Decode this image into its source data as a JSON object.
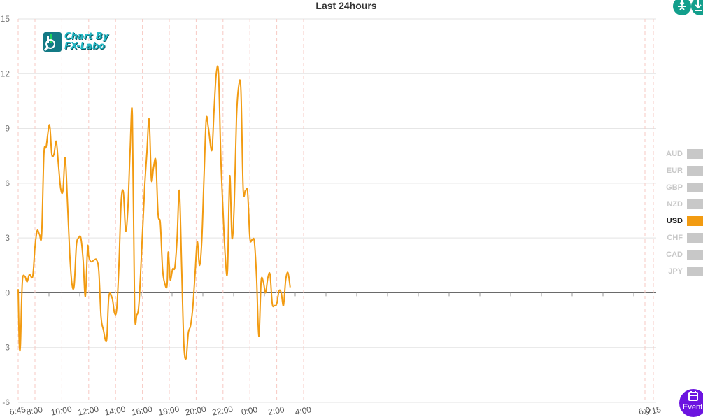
{
  "window": {
    "title": "Last 24hours"
  },
  "logo": {
    "line1": "Chart By",
    "line2": "FX-Labo"
  },
  "legend": [
    {
      "label": "AUD",
      "active": false
    },
    {
      "label": "EUR",
      "active": false
    },
    {
      "label": "GBP",
      "active": false
    },
    {
      "label": "NZD",
      "active": false
    },
    {
      "label": "USD",
      "active": true
    },
    {
      "label": "CHF",
      "active": false
    },
    {
      "label": "CAD",
      "active": false
    },
    {
      "label": "JPY",
      "active": false
    }
  ],
  "buttons": {
    "event_label": "Event"
  },
  "colors": {
    "series": "#f29b11",
    "active_legend": "#f29b11",
    "inactive_legend": "#c8c8c8",
    "top_buttons": "#139f8c",
    "event_button": "#6c14e0",
    "gridline": "#e3e3e3",
    "vertical_dashed": "#f7c9c3"
  },
  "chart_data": {
    "type": "line",
    "title": "Last 24hours",
    "xlabel": "",
    "ylabel": "",
    "ylim": [
      -6,
      15
    ],
    "yticks": [
      -6,
      -3,
      0,
      3,
      6,
      9,
      12,
      15
    ],
    "xlim": [
      "6:45",
      "6:15"
    ],
    "xticks": [
      "6:45",
      "8:00",
      "10:00",
      "12:00",
      "14:00",
      "16:00",
      "18:00",
      "20:00",
      "22:00",
      "0:00",
      "2:00",
      "4:00",
      "6:0",
      "6:15"
    ],
    "grid": true,
    "legend": "right",
    "series": [
      {
        "name": "USD",
        "points": [
          [
            "6:45",
            0.2
          ],
          [
            "6:50",
            -2.8
          ],
          [
            "6:55",
            -2.9
          ],
          [
            "7:00",
            -0.6
          ],
          [
            "7:05",
            0.8
          ],
          [
            "7:15",
            0.9
          ],
          [
            "7:25",
            0.6
          ],
          [
            "7:35",
            1.0
          ],
          [
            "7:50",
            0.9
          ],
          [
            "8:00",
            2.5
          ],
          [
            "8:10",
            3.4
          ],
          [
            "8:20",
            3.2
          ],
          [
            "8:30",
            3.2
          ],
          [
            "8:40",
            7.6
          ],
          [
            "8:50",
            8.0
          ],
          [
            "9:05",
            9.2
          ],
          [
            "9:15",
            7.6
          ],
          [
            "9:25",
            7.6
          ],
          [
            "9:35",
            8.3
          ],
          [
            "9:45",
            7.0
          ],
          [
            "9:55",
            5.7
          ],
          [
            "10:05",
            5.6
          ],
          [
            "10:15",
            7.4
          ],
          [
            "10:25",
            5.0
          ],
          [
            "10:35",
            2.2
          ],
          [
            "10:45",
            0.5
          ],
          [
            "10:55",
            0.4
          ],
          [
            "11:05",
            2.6
          ],
          [
            "11:15",
            3.0
          ],
          [
            "11:25",
            3.0
          ],
          [
            "11:35",
            1.8
          ],
          [
            "11:45",
            -0.2
          ],
          [
            "11:55",
            2.5
          ],
          [
            "12:00",
            2.0
          ],
          [
            "12:10",
            1.7
          ],
          [
            "12:25",
            1.8
          ],
          [
            "12:35",
            1.8
          ],
          [
            "12:45",
            1.2
          ],
          [
            "12:55",
            -1.3
          ],
          [
            "13:05",
            -2.0
          ],
          [
            "13:20",
            -2.6
          ],
          [
            "13:30",
            -0.2
          ],
          [
            "13:45",
            -0.3
          ],
          [
            "13:55",
            -1.1
          ],
          [
            "14:05",
            -0.9
          ],
          [
            "14:15",
            1.5
          ],
          [
            "14:25",
            5.0
          ],
          [
            "14:35",
            5.5
          ],
          [
            "14:45",
            3.4
          ],
          [
            "14:55",
            4.6
          ],
          [
            "15:05",
            7.8
          ],
          [
            "15:15",
            9.7
          ],
          [
            "15:25",
            -0.8
          ],
          [
            "15:35",
            -1.2
          ],
          [
            "15:45",
            -0.5
          ],
          [
            "16:00",
            3.2
          ],
          [
            "16:10",
            5.8
          ],
          [
            "16:20",
            7.7
          ],
          [
            "16:30",
            9.5
          ],
          [
            "16:40",
            6.2
          ],
          [
            "16:50",
            6.9
          ],
          [
            "17:00",
            7.2
          ],
          [
            "17:10",
            4.3
          ],
          [
            "17:20",
            3.8
          ],
          [
            "17:30",
            1.3
          ],
          [
            "17:40",
            0.5
          ],
          [
            "17:50",
            0.4
          ],
          [
            "17:55",
            2.2
          ],
          [
            "18:00",
            1.5
          ],
          [
            "18:05",
            0.7
          ],
          [
            "18:15",
            1.3
          ],
          [
            "18:25",
            1.4
          ],
          [
            "18:35",
            3.0
          ],
          [
            "18:45",
            5.6
          ],
          [
            "18:55",
            1.5
          ],
          [
            "19:05",
            -2.8
          ],
          [
            "19:15",
            -3.6
          ],
          [
            "19:25",
            -2.2
          ],
          [
            "19:35",
            -1.8
          ],
          [
            "19:45",
            -0.8
          ],
          [
            "19:55",
            1.0
          ],
          [
            "20:05",
            2.8
          ],
          [
            "20:15",
            1.5
          ],
          [
            "20:25",
            2.8
          ],
          [
            "20:35",
            6.3
          ],
          [
            "20:45",
            9.5
          ],
          [
            "20:55",
            9.0
          ],
          [
            "21:10",
            7.8
          ],
          [
            "21:20",
            10.0
          ],
          [
            "21:30",
            12.0
          ],
          [
            "21:40",
            12.0
          ],
          [
            "21:50",
            7.5
          ],
          [
            "22:00",
            4.5
          ],
          [
            "22:10",
            2.0
          ],
          [
            "22:20",
            1.2
          ],
          [
            "22:30",
            6.4
          ],
          [
            "22:40",
            3.0
          ],
          [
            "22:50",
            4.8
          ],
          [
            "23:00",
            9.5
          ],
          [
            "23:10",
            11.3
          ],
          [
            "23:20",
            11.1
          ],
          [
            "23:30",
            5.7
          ],
          [
            "23:40",
            5.6
          ],
          [
            "23:50",
            5.5
          ],
          [
            "0:00",
            3.0
          ],
          [
            "0:10",
            2.9
          ],
          [
            "0:20",
            2.8
          ],
          [
            "0:30",
            0.8
          ],
          [
            "0:40",
            -2.4
          ],
          [
            "0:50",
            0.6
          ],
          [
            "1:00",
            0.6
          ],
          [
            "1:10",
            0.0
          ],
          [
            "1:20",
            0.8
          ],
          [
            "1:30",
            1.0
          ],
          [
            "1:40",
            -0.6
          ],
          [
            "1:50",
            -0.7
          ],
          [
            "2:00",
            -0.6
          ],
          [
            "2:10",
            0.1
          ],
          [
            "2:20",
            0.0
          ],
          [
            "2:30",
            -0.7
          ],
          [
            "2:40",
            0.7
          ],
          [
            "2:50",
            1.1
          ],
          [
            "3:00",
            0.3
          ]
        ]
      }
    ]
  }
}
